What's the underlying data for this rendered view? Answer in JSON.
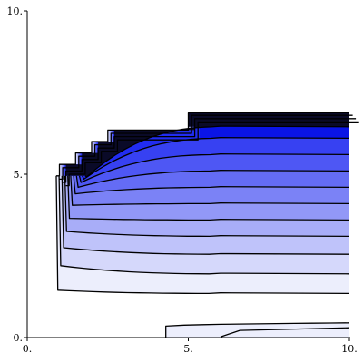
{
  "chart_data": {
    "type": "contour",
    "xlim": [
      0,
      10
    ],
    "ylim": [
      0,
      10
    ],
    "xticks": [
      {
        "value": 0,
        "label": "0."
      },
      {
        "value": 5,
        "label": "5."
      },
      {
        "value": 10,
        "label": "10."
      }
    ],
    "yticks": [
      {
        "value": 0,
        "label": "0."
      },
      {
        "value": 5,
        "label": "5."
      },
      {
        "value": 10,
        "label": "10."
      }
    ],
    "colors": {
      "background": "#ffffff",
      "line": "#000000",
      "fill_light": "#eceefc",
      "fill_dark": "#0a16f0",
      "fill_top": "#0a0a28"
    },
    "main_region": {
      "x_range": [
        0.9,
        10
      ],
      "base_y_at_left_edge": 1.45,
      "base_y_at_right_edge": 1.35,
      "base_curve_start_x": 0.95,
      "base_curve_flat_x": 6.0,
      "nose_x": 0.9,
      "nose_y": 4.95,
      "staircase": [
        {
          "x": 0.9,
          "y": 4.95
        },
        {
          "x": 1.0,
          "y": 4.95
        },
        {
          "x": 1.0,
          "y": 5.3
        },
        {
          "x": 1.5,
          "y": 5.3
        },
        {
          "x": 1.5,
          "y": 5.65
        },
        {
          "x": 2.0,
          "y": 5.65
        },
        {
          "x": 2.0,
          "y": 6.0
        },
        {
          "x": 2.5,
          "y": 6.0
        },
        {
          "x": 2.5,
          "y": 6.35
        },
        {
          "x": 5.0,
          "y": 6.35
        },
        {
          "x": 5.0,
          "y": 6.9
        },
        {
          "x": 10.0,
          "y": 6.9
        }
      ],
      "right_edge_levels_y": [
        1.35,
        1.95,
        2.55,
        3.1,
        3.6,
        4.1,
        4.6,
        5.1,
        5.6,
        6.1,
        6.45,
        6.9
      ],
      "left_edge_levels_y": [
        1.45,
        2.2,
        2.75,
        3.25,
        3.65,
        4.05,
        4.4,
        4.6,
        4.75,
        4.85,
        4.92,
        4.95
      ]
    },
    "bottom_region": {
      "x_range": [
        4.3,
        10
      ],
      "top_y_left": 0.35,
      "top_y_right": 0.45,
      "inner_start_x": 6.0,
      "inner_top_y": 0.22
    }
  }
}
